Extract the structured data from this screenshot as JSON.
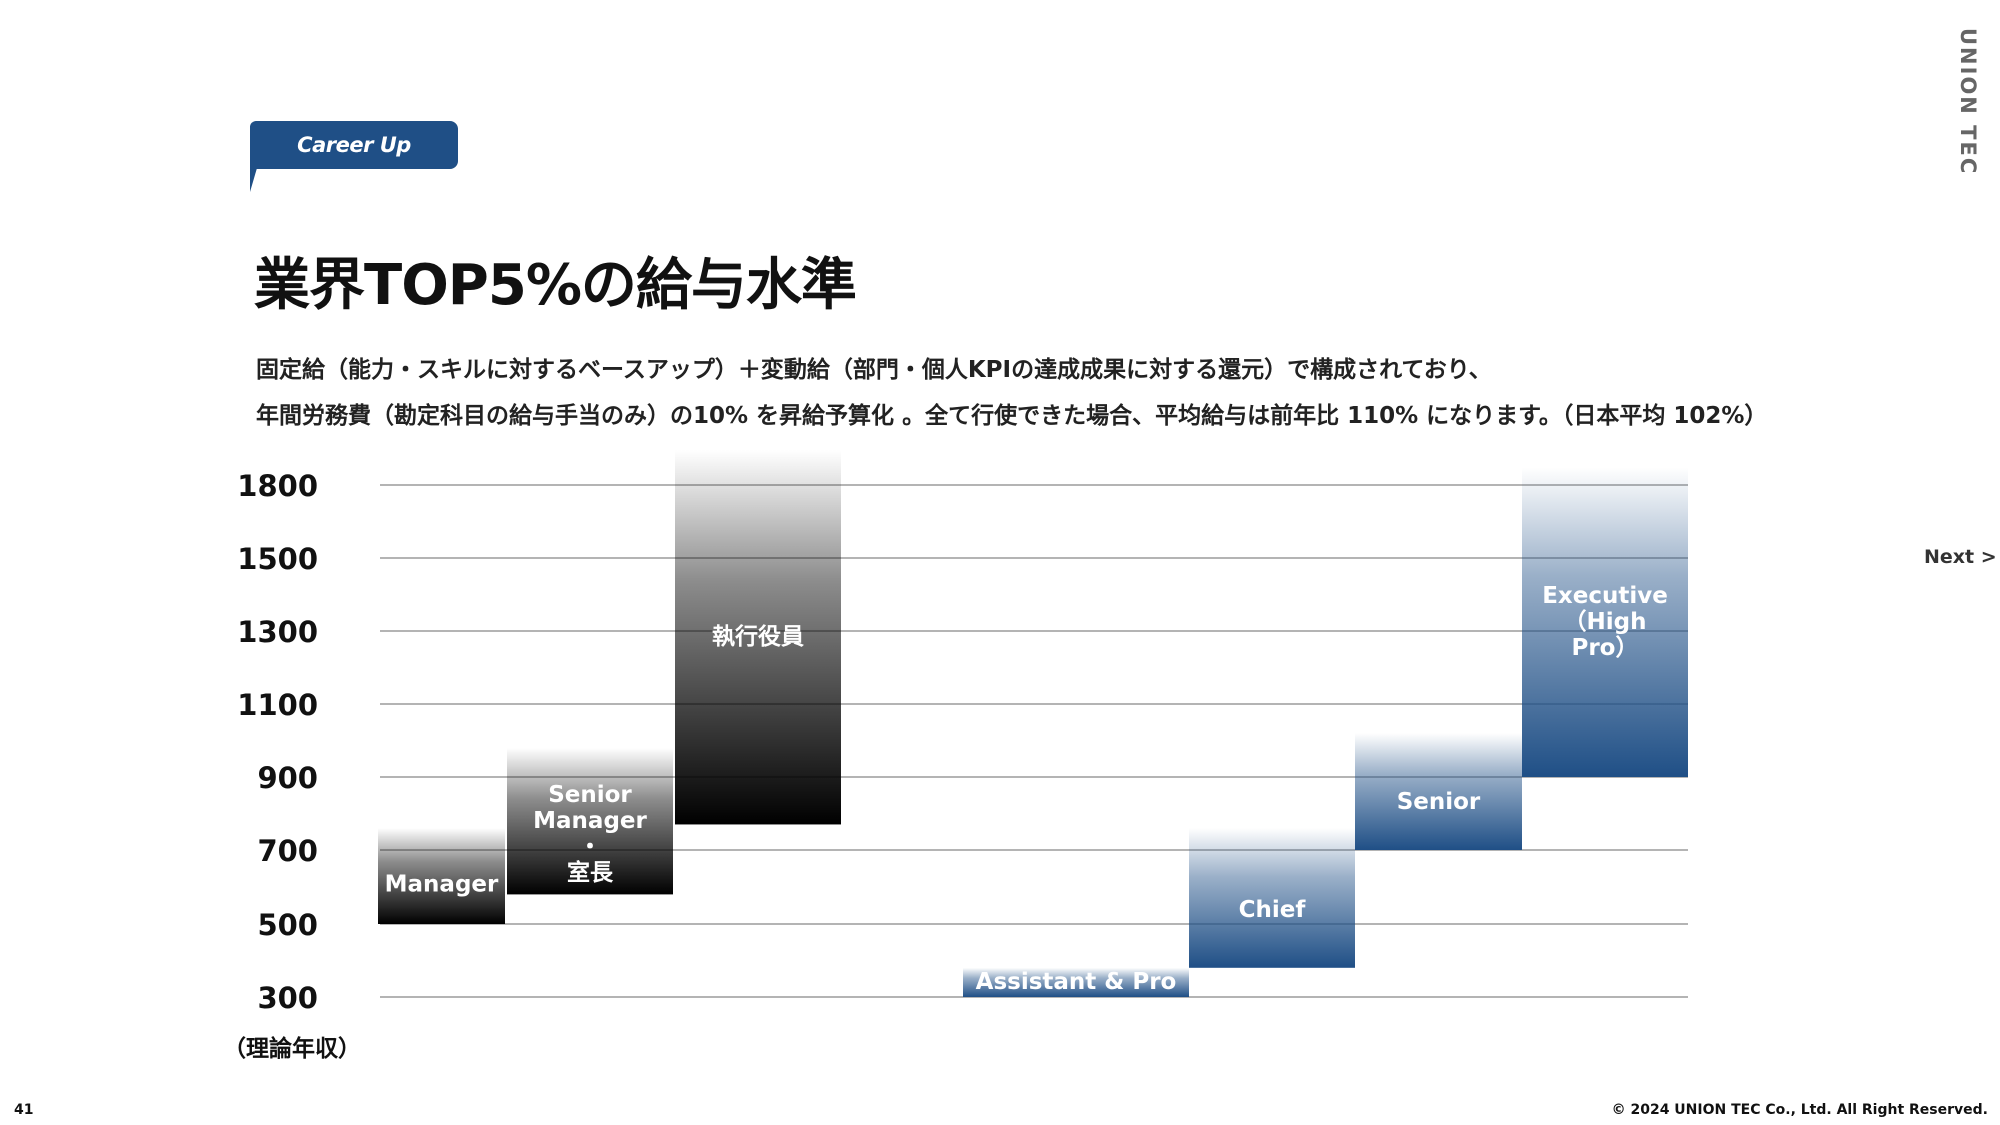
{
  "badge": {
    "label": "Career Up"
  },
  "brand": "UNION TEC",
  "title": "業界TOP5%の給与水準",
  "description": {
    "line1": "固定給（能力・スキルに対するベースアップ）＋変動給（部門・個人KPIの達成成果に対する還元）で構成されており、",
    "line2": "年間労務費（勘定科目の給与手当のみ）の10% を昇給予算化 。全て行使できた場合、平均給与は前年比 110% になります。（日本平均 102%）"
  },
  "next_label": "Next >",
  "footer": {
    "page_number": "41",
    "copyright": "© 2024 UNION TEC Co., Ltd. All Right Reserved."
  },
  "colors": {
    "accent": "#1f4f86",
    "dark_bar": "#000000",
    "gridline": "#888888"
  },
  "chart_data": {
    "type": "bar",
    "y_unit_label": "（理論年収）",
    "y_ticks": [
      1800,
      1500,
      1300,
      1100,
      900,
      700,
      500,
      300
    ],
    "grid": true,
    "series": [
      {
        "color": "#000000",
        "bars": [
          {
            "label": "Manager",
            "low": 500,
            "high": 760
          },
          {
            "label": "Senior\nManager\n・\n室長",
            "low": 580,
            "high": 980
          },
          {
            "label": "執行役員",
            "low": 770,
            "high": 1900
          }
        ]
      },
      {
        "color": "#1f4f86",
        "bars": [
          {
            "label": "Assistant & Pro",
            "low": 300,
            "high": 380
          },
          {
            "label": "Chief",
            "low": 380,
            "high": 760
          },
          {
            "label": "Senior",
            "low": 700,
            "high": 1020
          },
          {
            "label": "Executive\n（High\nPro）",
            "low": 900,
            "high": 1850
          }
        ]
      }
    ]
  }
}
